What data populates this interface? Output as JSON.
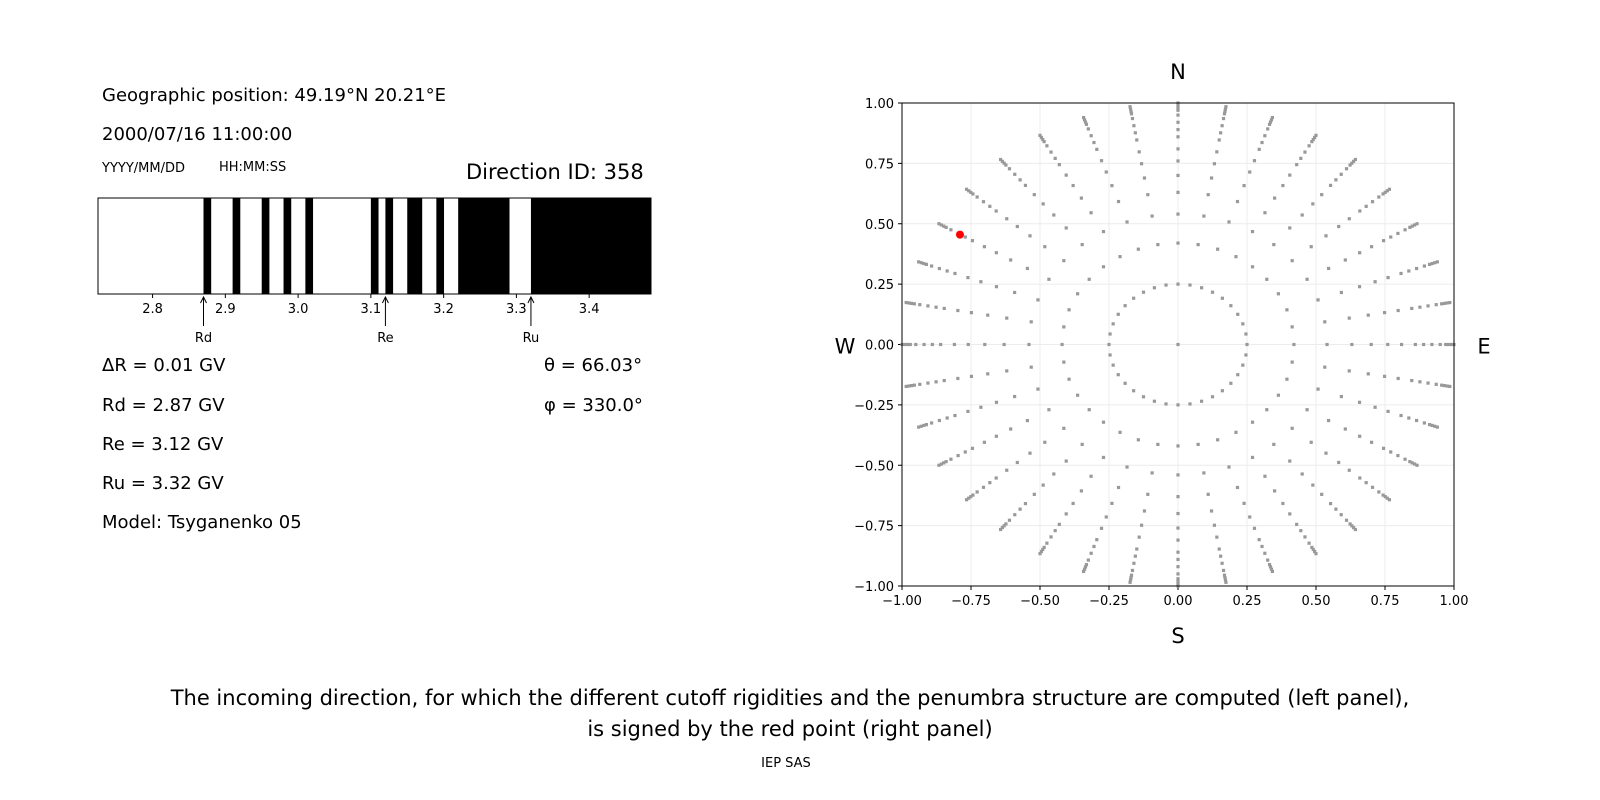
{
  "left_panel": {
    "geo_position": "Geographic position: 49.19°N 20.21°E",
    "datetime": "2000/07/16 11:00:00",
    "date_format": "YYYY/MM/DD",
    "time_format": "HH:MM:SS",
    "direction_id": "Direction ID: 358",
    "delta_r": "ΔR = 0.01 GV",
    "rd": "Rd = 2.87 GV",
    "re": "Re = 3.12 GV",
    "ru": "Ru = 3.32 GV",
    "model": "Model: Tsyganenko 05",
    "theta": "θ = 66.03°",
    "phi": "φ = 330.0°"
  },
  "caption": {
    "line1": "The incoming direction, for which the different cutoff rigidities and the penumbra structure are computed (left panel),",
    "line2": "is signed by the red point (right panel)",
    "credit": "IEP SAS"
  },
  "chart_data": [
    {
      "type": "penumbra-bar",
      "xlim": [
        2.725,
        3.485
      ],
      "xticks": [
        "2.8",
        "2.9",
        "3.0",
        "3.1",
        "3.2",
        "3.3",
        "3.4"
      ],
      "bin_width": 0.01,
      "forbidden_bins_start_GV": [
        2.87,
        2.91,
        2.95,
        2.98,
        3.01,
        3.1,
        3.12,
        3.15,
        3.16,
        3.19,
        3.22,
        3.23,
        3.24,
        3.25,
        3.26,
        3.27,
        3.28,
        3.32,
        3.33,
        3.34,
        3.35,
        3.36,
        3.37,
        3.38,
        3.39,
        3.4,
        3.41,
        3.42,
        3.43,
        3.44,
        3.45,
        3.46,
        3.47,
        3.48
      ],
      "colors": {
        "forbidden": "#000000",
        "allowed": "#ffffff"
      },
      "markers": [
        {
          "label": "Rd",
          "value": 2.87
        },
        {
          "label": "Re",
          "value": 3.12
        },
        {
          "label": "Ru",
          "value": 3.32
        }
      ]
    },
    {
      "type": "scatter",
      "xlim": [
        -1.0,
        1.0
      ],
      "ylim": [
        -1.0,
        1.0
      ],
      "xticks": [
        "−1.00",
        "−0.75",
        "−0.50",
        "−0.25",
        "0.00",
        "0.25",
        "0.50",
        "0.75",
        "1.00"
      ],
      "yticks": [
        "−1.00",
        "−0.75",
        "−0.50",
        "−0.25",
        "0.00",
        "0.25",
        "0.50",
        "0.75",
        "1.00"
      ],
      "grid": true,
      "compass": {
        "top": "N",
        "bottom": "S",
        "left": "W",
        "right": "E"
      },
      "directions": {
        "center": [
          0,
          0
        ],
        "azimuths_deg": [
          0,
          10,
          20,
          30,
          40,
          50,
          60,
          70,
          80,
          90,
          100,
          110,
          120,
          130,
          140,
          150,
          160,
          170,
          180,
          190,
          200,
          210,
          220,
          230,
          240,
          250,
          260,
          270,
          280,
          290,
          300,
          310,
          320,
          330,
          340,
          350
        ],
        "radii": [
          0.25,
          0.42,
          0.54,
          0.63,
          0.7,
          0.76,
          0.81,
          0.86,
          0.89,
          0.92,
          0.95,
          0.97,
          0.98,
          0.99,
          1.0
        ]
      },
      "point_color": "#999999",
      "selected_point": {
        "x": -0.79,
        "y": 0.455,
        "color": "#ff0000"
      }
    }
  ]
}
